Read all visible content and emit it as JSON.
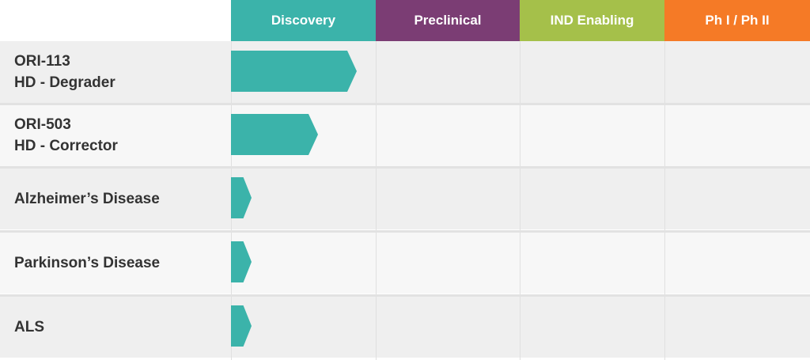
{
  "chart_data": {
    "type": "bar",
    "phases": [
      {
        "label": "Discovery",
        "color": "#3bb3aa"
      },
      {
        "label": "Preclinical",
        "color": "#7b3d74"
      },
      {
        "label": "IND Enabling",
        "color": "#a5c04a"
      },
      {
        "label": "Ph I / Ph II",
        "color": "#f57a26"
      }
    ],
    "programs": [
      {
        "line1": "ORI-113",
        "line2": "HD - Degrader",
        "progress": 0.87
      },
      {
        "line1": "ORI-503",
        "line2": "HD - Corrector",
        "progress": 0.6
      },
      {
        "line1": "Alzheimer’s Disease",
        "line2": "",
        "progress": 0.14
      },
      {
        "line1": "Parkinson’s Disease",
        "line2": "",
        "progress": 0.14
      },
      {
        "line1": "ALS",
        "line2": "",
        "progress": 0.14
      }
    ],
    "progress_unit": "fraction of phase completed",
    "bar_color": "#3bb3aa",
    "xlim": [
      0,
      4
    ]
  }
}
